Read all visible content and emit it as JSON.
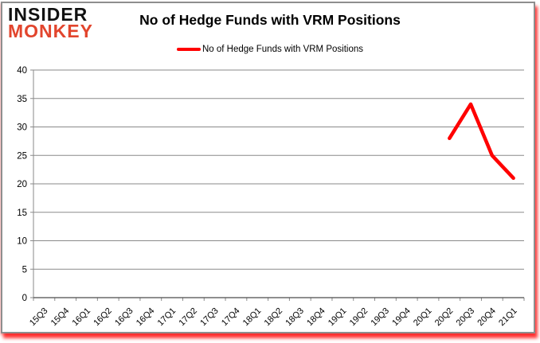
{
  "header": {
    "logo": {
      "line1": "INSIDER",
      "line2": "MONKEY"
    },
    "title": "No of Hedge Funds with VRM Positions",
    "legend": {
      "label": "No of Hedge Funds with VRM Positions"
    }
  },
  "colors": {
    "series_red": "#ff0000",
    "logo_red": "#e2452d",
    "logo_black": "#111111",
    "gridline_gray": "#8a8a8a",
    "axis_gray": "#4c4c4c",
    "border_gray": "#8e8e8e"
  },
  "chart_data": {
    "type": "line",
    "title": "No of Hedge Funds with VRM Positions",
    "categories": [
      "15Q3",
      "15Q4",
      "16Q1",
      "16Q2",
      "16Q3",
      "16Q4",
      "17Q1",
      "17Q2",
      "17Q3",
      "17Q4",
      "18Q1",
      "18Q2",
      "18Q3",
      "18Q4",
      "19Q1",
      "19Q2",
      "19Q3",
      "19Q4",
      "20Q1",
      "20Q2",
      "20Q3",
      "20Q4",
      "21Q1"
    ],
    "series": [
      {
        "name": "No of Hedge Funds with VRM Positions",
        "color": "#ff0000",
        "values": [
          null,
          null,
          null,
          null,
          null,
          null,
          null,
          null,
          null,
          null,
          null,
          null,
          null,
          null,
          null,
          null,
          null,
          null,
          null,
          28,
          34,
          25,
          21
        ]
      }
    ],
    "xlabel": "",
    "ylabel": "",
    "ylim": [
      0,
      40
    ],
    "yticks": [
      0,
      5,
      10,
      15,
      20,
      25,
      30,
      35,
      40
    ],
    "grid": true,
    "legend_position": "top-center",
    "x_tick_label_rotation_deg": -45
  }
}
